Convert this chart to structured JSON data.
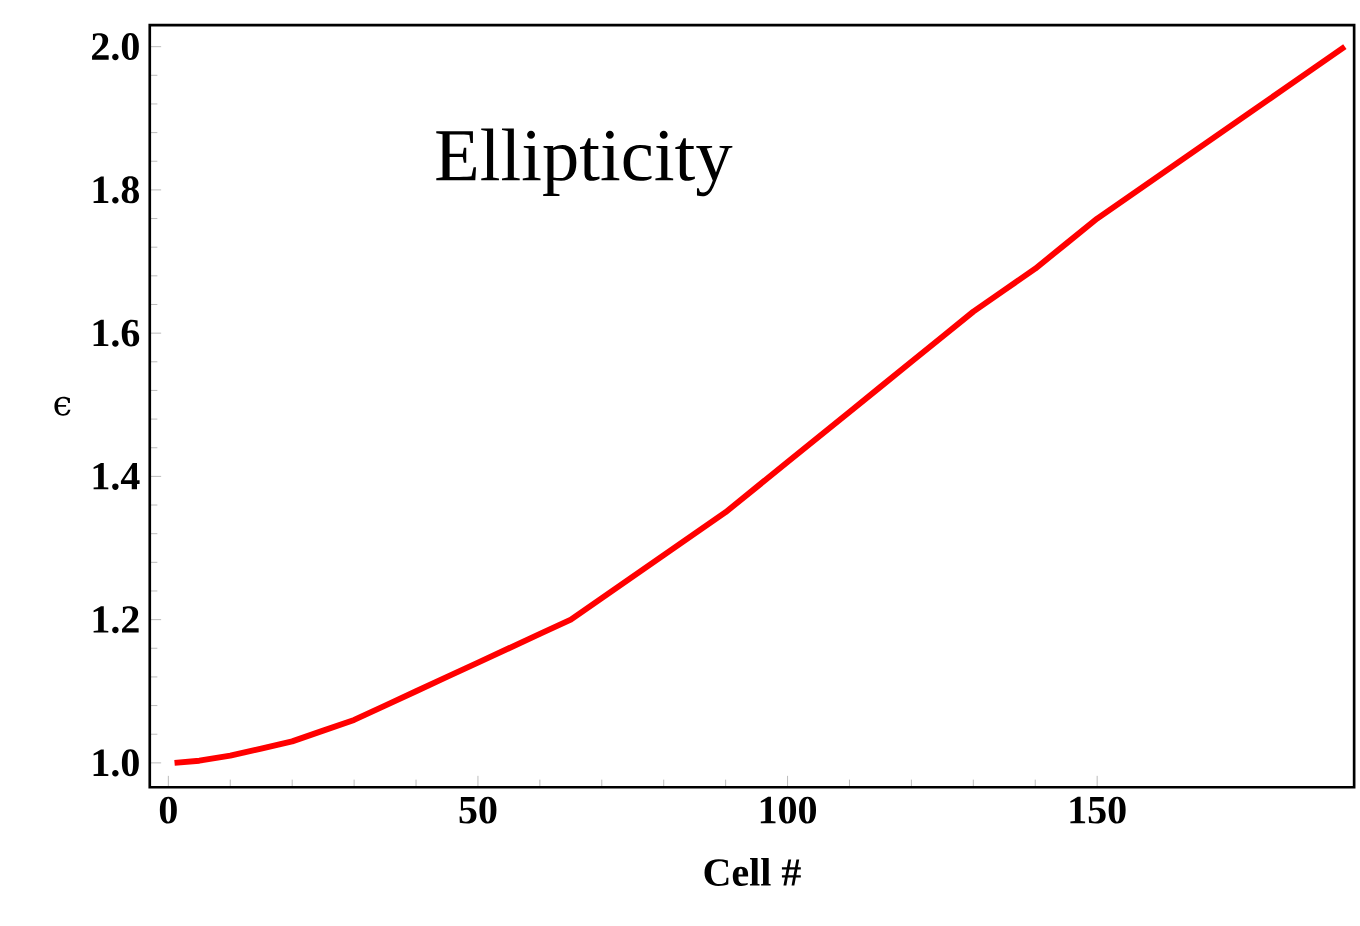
{
  "chart_data": {
    "type": "line",
    "xlabel": "Cell #",
    "ylabel": "ϵ",
    "annotations": [
      "Ellipticity"
    ],
    "x": [
      1,
      5,
      10,
      15,
      20,
      25,
      30,
      35,
      40,
      45,
      50,
      55,
      60,
      65,
      70,
      75,
      80,
      85,
      90,
      95,
      100,
      105,
      110,
      115,
      120,
      125,
      130,
      135,
      140,
      145,
      150,
      155,
      160,
      165,
      170,
      175,
      180,
      185,
      190
    ],
    "series": [
      {
        "color": "#ff0000",
        "values": [
          1.0,
          1.003,
          1.01,
          1.02,
          1.03,
          1.045,
          1.06,
          1.08,
          1.1,
          1.12,
          1.14,
          1.16,
          1.18,
          1.2,
          1.23,
          1.26,
          1.29,
          1.32,
          1.35,
          1.385,
          1.42,
          1.455,
          1.49,
          1.525,
          1.56,
          1.595,
          1.63,
          1.66,
          1.69,
          1.725,
          1.76,
          1.79,
          1.82,
          1.85,
          1.88,
          1.91,
          1.94,
          1.97,
          2.0
        ]
      }
    ],
    "xlim": [
      -3,
      191.5
    ],
    "ylim": [
      0.966,
      2.03
    ],
    "xticks": [
      0,
      50,
      100,
      150
    ],
    "yticks": [
      {
        "value": 1.0,
        "label": "1.0"
      },
      1.2,
      1.4,
      1.6,
      1.8,
      {
        "value": 2.0,
        "label": "2.0"
      }
    ],
    "grid": false,
    "marker": "none",
    "line_style": "solid"
  }
}
